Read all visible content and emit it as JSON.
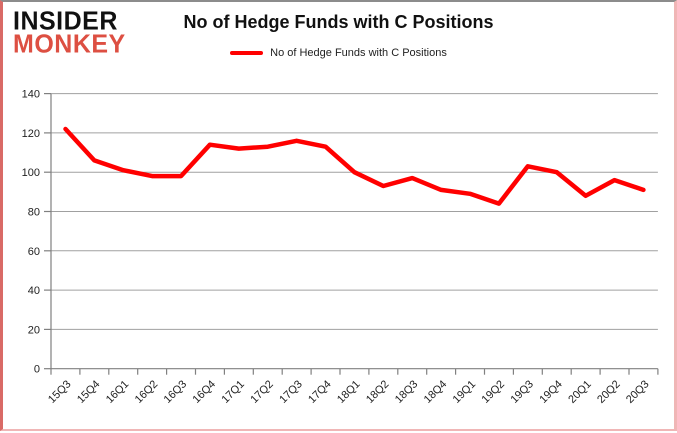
{
  "logo": {
    "line1": "INSIDER",
    "line2": "MONKEY"
  },
  "header": {
    "title": "No of Hedge Funds with C Positions"
  },
  "legend": {
    "label": "No of Hedge Funds with C Positions"
  },
  "colors": {
    "series": "#ff0000",
    "logo_black": "#111111",
    "logo_accent": "#dd4f42",
    "gridline": "#a0a0a0",
    "axis": "#808080",
    "tick_label": "#222222",
    "frame_pink": "#f0b6b6",
    "frame_red": "#d96a66"
  },
  "chart_data": {
    "type": "line",
    "title": "No of Hedge Funds with C Positions",
    "categories": [
      "15Q3",
      "15Q4",
      "16Q1",
      "16Q2",
      "16Q3",
      "16Q4",
      "17Q1",
      "17Q2",
      "17Q3",
      "17Q4",
      "18Q1",
      "18Q2",
      "18Q3",
      "18Q4",
      "19Q1",
      "19Q2",
      "19Q3",
      "19Q4",
      "20Q1",
      "20Q2",
      "20Q3"
    ],
    "series": [
      {
        "name": "No of Hedge Funds with C Positions",
        "color": "#ff0000",
        "values": [
          122,
          106,
          101,
          98,
          98,
          114,
          112,
          113,
          116,
          113,
          100,
          93,
          97,
          91,
          89,
          84,
          103,
          100,
          88,
          96,
          91
        ]
      }
    ],
    "xlabel": "",
    "ylabel": "",
    "ylim": [
      0,
      140
    ],
    "ytick_step": 20,
    "yticks": [
      0,
      20,
      40,
      60,
      80,
      100,
      120,
      140
    ],
    "grid": true,
    "legend_position": "top-center",
    "x_label_rotation": -45
  }
}
